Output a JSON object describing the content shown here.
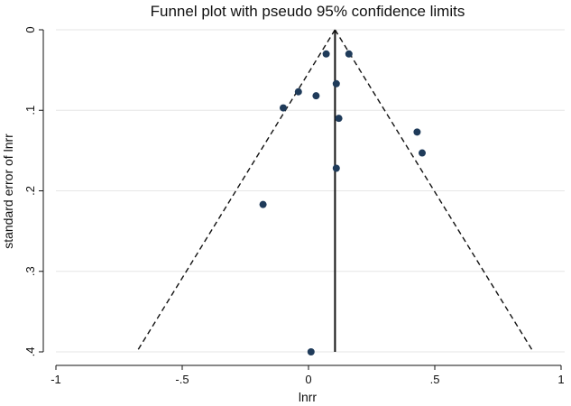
{
  "chart_data": {
    "type": "scatter",
    "title": "Funnel plot with pseudo 95% confidence limits",
    "xlabel": "lnrr",
    "ylabel": "standard error of lnrr",
    "xlim": [
      -1,
      1
    ],
    "ylim": [
      0,
      0.4
    ],
    "y_reversed": true,
    "grid": true,
    "legend": "none",
    "x_ticks": [
      -1,
      -0.5,
      0,
      0.5,
      1
    ],
    "x_tick_labels": [
      "-1",
      "-.5",
      "0",
      ".5",
      "1"
    ],
    "y_ticks": [
      0,
      0.1,
      0.2,
      0.3,
      0.4
    ],
    "y_tick_labels": [
      "0",
      ".1",
      ".2",
      ".3",
      ".4"
    ],
    "pooled_estimate": 0.105,
    "ci_limits": {
      "apex": [
        0.105,
        0
      ],
      "left_bottom": [
        -0.68,
        0.4
      ],
      "right_bottom": [
        0.89,
        0.4
      ]
    },
    "x": [
      0.07,
      0.16,
      0.11,
      -0.04,
      0.03,
      -0.1,
      0.12,
      0.43,
      0.45,
      0.11,
      -0.18,
      0.01
    ],
    "y": [
      0.03,
      0.03,
      0.067,
      0.077,
      0.082,
      0.097,
      0.11,
      0.127,
      0.153,
      0.172,
      0.217,
      0.4
    ],
    "colors": {
      "points": "#1f3b5a",
      "lines": "#111111",
      "grid": "#e6e6e6"
    }
  }
}
